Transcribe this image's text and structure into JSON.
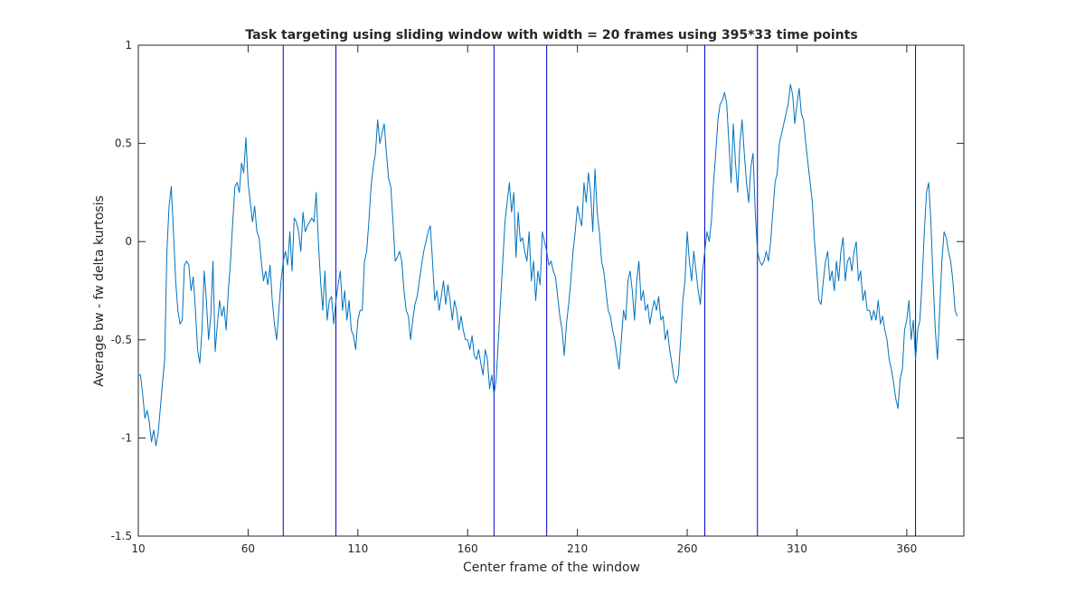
{
  "colors": {
    "background": "#ffffff",
    "axes": "#262626",
    "series": "#0072BD",
    "markers": "#0000CC"
  },
  "chart_data": {
    "type": "line",
    "title": "Task targeting using sliding window with width = 20 frames using 395*33 time points",
    "xlabel": "Center frame of the window",
    "ylabel": "Average bw - fw delta kurtosis",
    "xlim": [
      10,
      386
    ],
    "ylim": [
      -1.5,
      1
    ],
    "grid": false,
    "legend": "none",
    "x_ticks": [
      10,
      60,
      110,
      160,
      210,
      260,
      310,
      360
    ],
    "x_tick_labels": [
      "10",
      "60",
      "110",
      "160",
      "210",
      "260",
      "310",
      "360"
    ],
    "y_ticks": [
      -1.5,
      -1,
      -0.5,
      0,
      0.5,
      1
    ],
    "y_tick_labels": [
      "-1.5",
      "-1",
      "-0.5",
      "0",
      "0.5",
      "1"
    ],
    "vertical_markers_x": [
      76,
      100,
      172,
      196,
      268,
      292,
      364
    ],
    "series": [
      {
        "x_start": 10,
        "x_step": 1,
        "values": [
          -0.68,
          -0.68,
          -0.78,
          -0.9,
          -0.86,
          -0.92,
          -1.02,
          -0.96,
          -1.04,
          -0.98,
          -0.85,
          -0.72,
          -0.6,
          -0.05,
          0.18,
          0.28,
          0.05,
          -0.2,
          -0.35,
          -0.42,
          -0.4,
          -0.12,
          -0.1,
          -0.12,
          -0.25,
          -0.18,
          -0.35,
          -0.55,
          -0.62,
          -0.45,
          -0.15,
          -0.3,
          -0.5,
          -0.38,
          -0.1,
          -0.56,
          -0.42,
          -0.3,
          -0.38,
          -0.33,
          -0.45,
          -0.25,
          -0.1,
          0.1,
          0.28,
          0.3,
          0.25,
          0.4,
          0.35,
          0.53,
          0.3,
          0.2,
          0.1,
          0.18,
          0.05,
          0.02,
          -0.1,
          -0.2,
          -0.15,
          -0.22,
          -0.12,
          -0.3,
          -0.42,
          -0.5,
          -0.35,
          -0.2,
          -0.1,
          -0.05,
          -0.12,
          0.05,
          -0.15,
          0.12,
          0.1,
          0.05,
          -0.05,
          0.15,
          0.05,
          0.08,
          0.1,
          0.12,
          0.1,
          0.25,
          0.0,
          -0.2,
          -0.35,
          -0.15,
          -0.4,
          -0.3,
          -0.28,
          -0.42,
          -0.3,
          -0.22,
          -0.15,
          -0.35,
          -0.25,
          -0.4,
          -0.3,
          -0.45,
          -0.48,
          -0.55,
          -0.4,
          -0.35,
          -0.35,
          -0.1,
          -0.05,
          0.1,
          0.28,
          0.38,
          0.45,
          0.62,
          0.5,
          0.55,
          0.6,
          0.45,
          0.32,
          0.28,
          0.1,
          -0.1,
          -0.08,
          -0.05,
          -0.1,
          -0.25,
          -0.35,
          -0.38,
          -0.5,
          -0.4,
          -0.32,
          -0.28,
          -0.2,
          -0.12,
          -0.05,
          0.0,
          0.05,
          0.08,
          -0.1,
          -0.3,
          -0.25,
          -0.35,
          -0.28,
          -0.2,
          -0.32,
          -0.22,
          -0.3,
          -0.4,
          -0.3,
          -0.35,
          -0.45,
          -0.38,
          -0.45,
          -0.5,
          -0.5,
          -0.55,
          -0.48,
          -0.58,
          -0.6,
          -0.55,
          -0.62,
          -0.68,
          -0.55,
          -0.6,
          -0.75,
          -0.68,
          -0.78,
          -0.7,
          -0.5,
          -0.3,
          -0.1,
          0.1,
          0.2,
          0.3,
          0.15,
          0.25,
          -0.08,
          0.15,
          0.0,
          0.02,
          -0.05,
          -0.1,
          0.05,
          -0.2,
          -0.1,
          -0.3,
          -0.15,
          -0.22,
          0.05,
          0.0,
          -0.05,
          -0.12,
          -0.1,
          -0.15,
          -0.18,
          -0.28,
          -0.38,
          -0.45,
          -0.58,
          -0.42,
          -0.32,
          -0.2,
          -0.05,
          0.05,
          0.18,
          0.12,
          0.08,
          0.3,
          0.2,
          0.35,
          0.25,
          0.05,
          0.37,
          0.15,
          0.05,
          -0.1,
          -0.15,
          -0.25,
          -0.35,
          -0.38,
          -0.45,
          -0.5,
          -0.58,
          -0.65,
          -0.5,
          -0.35,
          -0.4,
          -0.2,
          -0.15,
          -0.25,
          -0.4,
          -0.2,
          -0.1,
          -0.3,
          -0.25,
          -0.35,
          -0.32,
          -0.42,
          -0.35,
          -0.3,
          -0.35,
          -0.28,
          -0.4,
          -0.38,
          -0.5,
          -0.45,
          -0.55,
          -0.62,
          -0.7,
          -0.72,
          -0.68,
          -0.5,
          -0.3,
          -0.2,
          0.05,
          -0.1,
          -0.2,
          -0.05,
          -0.15,
          -0.25,
          -0.32,
          -0.15,
          -0.05,
          0.05,
          0.0,
          0.1,
          0.3,
          0.45,
          0.62,
          0.7,
          0.72,
          0.76,
          0.7,
          0.5,
          0.3,
          0.6,
          0.4,
          0.25,
          0.5,
          0.62,
          0.45,
          0.3,
          0.2,
          0.38,
          0.45,
          0.15,
          -0.05,
          -0.1,
          -0.12,
          -0.1,
          -0.05,
          -0.1,
          0.0,
          0.15,
          0.3,
          0.35,
          0.5,
          0.55,
          0.6,
          0.65,
          0.7,
          0.8,
          0.75,
          0.6,
          0.7,
          0.78,
          0.65,
          0.62,
          0.5,
          0.4,
          0.3,
          0.2,
          0.0,
          -0.15,
          -0.3,
          -0.32,
          -0.2,
          -0.1,
          -0.05,
          -0.2,
          -0.15,
          -0.25,
          -0.1,
          -0.2,
          -0.05,
          0.02,
          -0.2,
          -0.1,
          -0.08,
          -0.15,
          -0.05,
          0.0,
          -0.2,
          -0.15,
          -0.3,
          -0.25,
          -0.35,
          -0.35,
          -0.4,
          -0.35,
          -0.4,
          -0.3,
          -0.42,
          -0.38,
          -0.45,
          -0.5,
          -0.6,
          -0.65,
          -0.72,
          -0.8,
          -0.85,
          -0.7,
          -0.65,
          -0.45,
          -0.4,
          -0.3,
          -0.5,
          -0.4,
          -0.6,
          -0.45,
          -0.4,
          -0.2,
          0.05,
          0.25,
          0.3,
          0.1,
          -0.2,
          -0.45,
          -0.6,
          -0.35,
          -0.1,
          0.05,
          0.02,
          -0.05,
          -0.1,
          -0.2,
          -0.35,
          -0.38
        ]
      }
    ]
  }
}
